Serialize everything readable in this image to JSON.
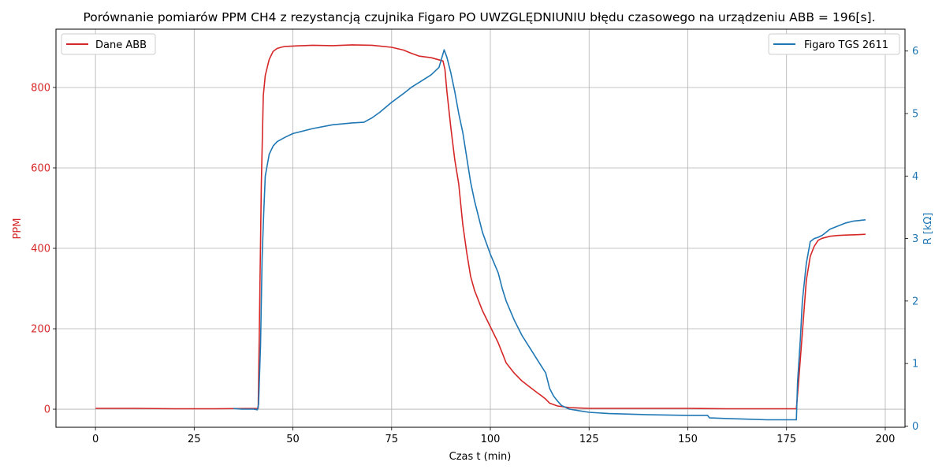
{
  "chart_data": {
    "type": "line",
    "title": "Porównanie pomiarów PPM CH4 z rezystancją czujnika Figaro PO UWZGLĘDNIUNIU błędu czasowego na urządzeniu ABB = 196[s].",
    "xlabel": "Czas t (min)",
    "ylabel_left": "PPM",
    "ylabel_right": "R [kΩ]",
    "xlim": [
      -10,
      205
    ],
    "ylim_left": [
      -45,
      945
    ],
    "ylim_right": [
      -0.02,
      6.35
    ],
    "x_ticks": [
      0,
      25,
      50,
      75,
      100,
      125,
      150,
      175,
      200
    ],
    "y_ticks_left": [
      0,
      200,
      400,
      600,
      800
    ],
    "y_ticks_right": [
      0,
      1,
      2,
      3,
      4,
      5,
      6
    ],
    "grid": true,
    "legend_left_position": "top-left",
    "legend_right_position": "top-right",
    "colors": {
      "abb": "#d62728",
      "figaro": "#1f77b4"
    },
    "series": [
      {
        "name": "Dane ABB",
        "axis": "left",
        "color": "#d62728",
        "x": [
          0,
          10,
          20,
          30,
          41.2,
          41.5,
          42,
          42.5,
          43,
          44,
          45,
          46,
          47,
          48,
          50,
          55,
          60,
          65,
          70,
          72,
          75,
          78,
          80,
          82,
          85,
          88,
          88.5,
          89,
          90,
          91,
          92,
          93,
          94,
          95,
          96,
          98,
          100,
          102,
          104,
          106,
          108,
          110,
          112,
          113,
          114,
          115,
          117,
          120,
          125,
          150,
          160,
          170,
          177.5,
          178,
          179,
          180,
          181,
          182,
          183,
          184,
          186,
          188,
          190,
          193,
          195
        ],
        "y": [
          2,
          2,
          1,
          1,
          2,
          200,
          560,
          780,
          830,
          870,
          890,
          897,
          900,
          902,
          903,
          905,
          904,
          906,
          905,
          903,
          900,
          893,
          885,
          878,
          874,
          866,
          845,
          790,
          700,
          620,
          560,
          460,
          390,
          330,
          295,
          245,
          205,
          165,
          115,
          90,
          70,
          55,
          40,
          33,
          25,
          15,
          8,
          4,
          2,
          2,
          1,
          1,
          1,
          60,
          190,
          320,
          380,
          405,
          420,
          425,
          430,
          432,
          433,
          434,
          435
        ]
      },
      {
        "name": "Figaro TGS 2611",
        "axis": "right",
        "color": "#1f77b4",
        "x": [
          35,
          37,
          40,
          41,
          41.3,
          41.8,
          42.2,
          42.6,
          43,
          44,
          45,
          46,
          48,
          50,
          55,
          60,
          65,
          68,
          70,
          72,
          75,
          78,
          80,
          82,
          85,
          87,
          88.3,
          89,
          90,
          91,
          92,
          93,
          94,
          95,
          96,
          98,
          100,
          102,
          103,
          104,
          106,
          108,
          110,
          112,
          113,
          114,
          115,
          116,
          117,
          118,
          120,
          123,
          125,
          130,
          140,
          150,
          155,
          155.5,
          160,
          165,
          170,
          177.5,
          177.8,
          178.5,
          179,
          180,
          181,
          182,
          183,
          184,
          185,
          186,
          188,
          190,
          192,
          195
        ],
        "y": [
          0.28,
          0.27,
          0.27,
          0.26,
          0.35,
          1.3,
          2.7,
          3.4,
          4.0,
          4.35,
          4.48,
          4.55,
          4.62,
          4.68,
          4.76,
          4.82,
          4.85,
          4.86,
          4.93,
          5.02,
          5.18,
          5.32,
          5.42,
          5.5,
          5.62,
          5.74,
          6.02,
          5.9,
          5.65,
          5.35,
          5.0,
          4.7,
          4.3,
          3.9,
          3.6,
          3.1,
          2.75,
          2.45,
          2.2,
          2.0,
          1.7,
          1.45,
          1.25,
          1.05,
          0.95,
          0.85,
          0.6,
          0.48,
          0.4,
          0.33,
          0.27,
          0.24,
          0.22,
          0.2,
          0.18,
          0.17,
          0.17,
          0.13,
          0.12,
          0.11,
          0.1,
          0.1,
          0.7,
          1.4,
          2.0,
          2.6,
          2.95,
          3.0,
          3.02,
          3.05,
          3.1,
          3.15,
          3.2,
          3.25,
          3.28,
          3.3
        ]
      }
    ]
  }
}
